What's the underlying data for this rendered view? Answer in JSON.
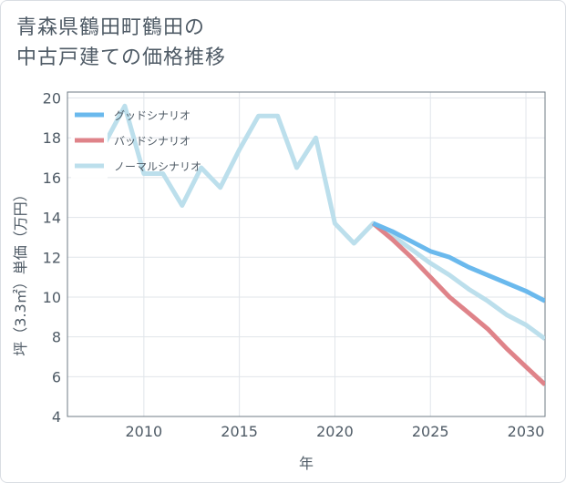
{
  "chart_data": {
    "type": "line",
    "title": [
      "青森県鶴田町鶴田の",
      "中古戸建ての価格推移"
    ],
    "xlabel": "年",
    "ylabel": "坪（3.3㎡）単価（万円）",
    "xlim": [
      2006,
      2031
    ],
    "ylim": [
      4,
      20.3
    ],
    "xticks": [
      2010,
      2015,
      2020,
      2025,
      2030
    ],
    "yticks": [
      4,
      6,
      8,
      10,
      12,
      14,
      16,
      18,
      20
    ],
    "grid": true,
    "legend_position": "top-left",
    "series": [
      {
        "name": "グッドシナリオ",
        "color": "#6ab9ed",
        "x": [
          2022,
          2023,
          2024,
          2025,
          2026,
          2027,
          2028,
          2029,
          2030,
          2031
        ],
        "y": [
          13.7,
          13.3,
          12.8,
          12.3,
          12.0,
          11.5,
          11.1,
          10.7,
          10.3,
          9.8
        ]
      },
      {
        "name": "バッドシナリオ",
        "color": "#df8389",
        "x": [
          2022,
          2023,
          2024,
          2025,
          2026,
          2027,
          2028,
          2029,
          2030,
          2031
        ],
        "y": [
          13.7,
          12.9,
          12.0,
          11.0,
          10.0,
          9.2,
          8.4,
          7.4,
          6.5,
          5.6
        ]
      },
      {
        "name": "ノーマルシナリオ",
        "color": "#bcdfec",
        "x": [
          2008,
          2009,
          2010,
          2011,
          2012,
          2013,
          2014,
          2015,
          2016,
          2017,
          2018,
          2019,
          2020,
          2021,
          2022,
          2023,
          2024,
          2025,
          2026,
          2027,
          2028,
          2029,
          2030,
          2031
        ],
        "y": [
          17.8,
          19.6,
          16.2,
          16.2,
          14.6,
          16.5,
          15.5,
          17.4,
          19.1,
          19.1,
          16.5,
          18.0,
          13.7,
          12.7,
          13.7,
          13.1,
          12.4,
          11.7,
          11.1,
          10.4,
          9.8,
          9.1,
          8.6,
          7.9
        ]
      }
    ]
  }
}
